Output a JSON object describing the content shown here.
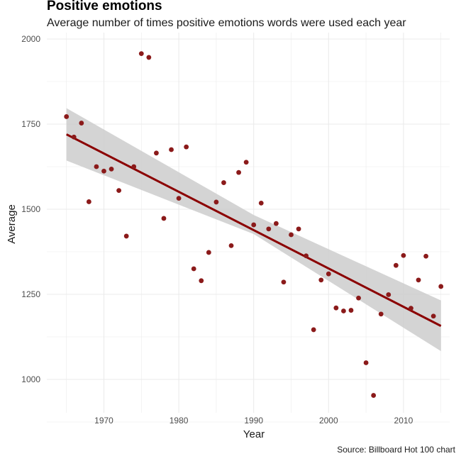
{
  "chart_data": {
    "type": "scatter",
    "title": "Positive emotions",
    "subtitle": "Average number of times positive emotions words were used each year",
    "xlabel": "Year",
    "ylabel": "Average",
    "caption": "Source: Billboard Hot 100 chart",
    "xlim": [
      1965,
      2015
    ],
    "ylim": [
      1000,
      2000
    ],
    "x_ticks": [
      1970,
      1980,
      1990,
      2000,
      2010
    ],
    "y_ticks": [
      1000,
      1250,
      1500,
      1750,
      2000
    ],
    "grid": true,
    "points": [
      {
        "x": 1965,
        "y": 1772
      },
      {
        "x": 1966,
        "y": 1712
      },
      {
        "x": 1967,
        "y": 1753
      },
      {
        "x": 1968,
        "y": 1522
      },
      {
        "x": 1969,
        "y": 1625
      },
      {
        "x": 1970,
        "y": 1612
      },
      {
        "x": 1971,
        "y": 1618
      },
      {
        "x": 1972,
        "y": 1555
      },
      {
        "x": 1973,
        "y": 1421
      },
      {
        "x": 1974,
        "y": 1625
      },
      {
        "x": 1975,
        "y": 1957
      },
      {
        "x": 1976,
        "y": 1946
      },
      {
        "x": 1977,
        "y": 1665
      },
      {
        "x": 1978,
        "y": 1473
      },
      {
        "x": 1979,
        "y": 1675
      },
      {
        "x": 1980,
        "y": 1532
      },
      {
        "x": 1981,
        "y": 1683
      },
      {
        "x": 1982,
        "y": 1325
      },
      {
        "x": 1983,
        "y": 1290
      },
      {
        "x": 1984,
        "y": 1373
      },
      {
        "x": 1985,
        "y": 1521
      },
      {
        "x": 1986,
        "y": 1578
      },
      {
        "x": 1987,
        "y": 1393
      },
      {
        "x": 1988,
        "y": 1608
      },
      {
        "x": 1989,
        "y": 1638
      },
      {
        "x": 1990,
        "y": 1454
      },
      {
        "x": 1991,
        "y": 1518
      },
      {
        "x": 1992,
        "y": 1442
      },
      {
        "x": 1993,
        "y": 1458
      },
      {
        "x": 1994,
        "y": 1286
      },
      {
        "x": 1995,
        "y": 1425
      },
      {
        "x": 1996,
        "y": 1442
      },
      {
        "x": 1997,
        "y": 1363
      },
      {
        "x": 1998,
        "y": 1146
      },
      {
        "x": 1999,
        "y": 1292
      },
      {
        "x": 2000,
        "y": 1310
      },
      {
        "x": 2001,
        "y": 1210
      },
      {
        "x": 2002,
        "y": 1201
      },
      {
        "x": 2003,
        "y": 1203
      },
      {
        "x": 2004,
        "y": 1239
      },
      {
        "x": 2005,
        "y": 1049
      },
      {
        "x": 2006,
        "y": 953
      },
      {
        "x": 2007,
        "y": 1192
      },
      {
        "x": 2008,
        "y": 1249
      },
      {
        "x": 2009,
        "y": 1335
      },
      {
        "x": 2010,
        "y": 1364
      },
      {
        "x": 2011,
        "y": 1209
      },
      {
        "x": 2012,
        "y": 1292
      },
      {
        "x": 2013,
        "y": 1362
      },
      {
        "x": 2014,
        "y": 1186
      },
      {
        "x": 2015,
        "y": 1273
      }
    ],
    "trend": {
      "x": [
        1965,
        2015
      ],
      "y": [
        1720,
        1157
      ]
    },
    "confidence_band": {
      "x": [
        1965,
        1990,
        2015
      ],
      "lower": [
        1643,
        1427,
        1083
      ],
      "upper": [
        1797,
        1483,
        1232
      ]
    },
    "colors": {
      "point": "#8b1a1a",
      "trend": "#8b0000",
      "band": "#cccccc",
      "grid": "#ebebeb"
    }
  }
}
